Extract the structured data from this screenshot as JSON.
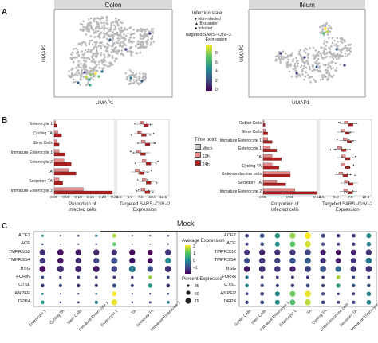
{
  "panels": {
    "A": {
      "letter": "A"
    },
    "B": {
      "letter": "B"
    },
    "C": {
      "letter": "C"
    }
  },
  "umap": {
    "colon_title": "Colon",
    "ileum_title": "Ileum",
    "xlabel": "UMAP1",
    "ylabel": "UMAP2",
    "legend": {
      "infection_title": "Infection state",
      "infection_items": [
        "Non-infected",
        "Bystander",
        "Infected"
      ],
      "color_title": "Targeted SARS−CoV−2\nExpression",
      "color_title_lines": [
        "Targeted SARS−CoV−2",
        "Expression"
      ],
      "ticks": [
        "8",
        "6",
        "4",
        "2",
        "0"
      ]
    }
  },
  "bars_colon": {
    "categories": [
      "Enterocyte 1",
      "Cycling TA",
      "Stem Cells",
      "Immature Enterocyte 1",
      "Enterocyte 2",
      "TA",
      "Secretory TA",
      "Immature Enterocyte 2"
    ],
    "xlabel_lines": [
      "Proportion of",
      "infected cells"
    ],
    "ticks": [
      "0.00",
      "0.05",
      "0.10",
      "0.15",
      "0.20",
      "0.25"
    ],
    "box_xlabel_lines": [
      "Targeted SARS−CoV−2",
      "Expression"
    ],
    "box_ticks": [
      "2.5",
      "5.0",
      "7.5",
      "10.0",
      "12.5"
    ]
  },
  "bars_ileum": {
    "categories": [
      "Goblet Cells",
      "Stem Cells",
      "Immature Enterocyte 1",
      "Enterocyte 1",
      "TA",
      "Cycling TA",
      "Enteroendocrine cells",
      "Secretory TA",
      "Immature Enterocyte 2"
    ],
    "xlabel_lines": [
      "Proportion of",
      "infected cells"
    ],
    "ticks": [
      "0.00",
      "0.05",
      "0.10"
    ],
    "box_xlabel_lines": [
      "Targeted SARS−CoV−2",
      "Expression"
    ],
    "box_ticks": [
      "2.5",
      "5.0",
      "7.5",
      "10.0"
    ]
  },
  "timepoint_legend": {
    "title": "Time point",
    "items": [
      "Mock",
      "12h",
      "24h"
    ],
    "colors": [
      "#c8c8c8",
      "#e88a8a",
      "#b01c1c"
    ]
  },
  "dot": {
    "title": "Mock",
    "genes": [
      "ACE2",
      "ACE",
      "TMPRSS2",
      "TMPRSS4",
      "BSG",
      "FURIN",
      "CTSL",
      "ANPEP",
      "DPP4"
    ],
    "colon_cells": [
      "Enterocyte 1",
      "Cycling TA",
      "Stem Cells",
      "Immature Enterocyte 1",
      "Enterocyte 2",
      "TA",
      "Secretory TA",
      "Immature Enterocyte 2"
    ],
    "ileum_cells": [
      "Goblet Cells",
      "Stem Cells",
      "Immature Enterocyte 1",
      "Enterocyte 1",
      "TA",
      "Cycling TA",
      "Enteroendocrine cells",
      "Secretory TA",
      "Immature Enterocyte 2"
    ],
    "avg_title_lines": [
      "Average Expression"
    ],
    "avg_ticks": [
      "2",
      "1",
      "0",
      "−1"
    ],
    "pct_title": "Percent Expressed",
    "pct_items": [
      "25",
      "50",
      "75"
    ]
  },
  "chart_data": [
    {
      "type": "scatter",
      "title": "Colon",
      "xlabel": "UMAP1",
      "ylabel": "UMAP2",
      "note": "UMAP embedding of colon cells colored by targeted SARS-CoV-2 expression"
    },
    {
      "type": "scatter",
      "title": "Ileum",
      "xlabel": "UMAP1",
      "ylabel": "UMAP2"
    },
    {
      "type": "bar",
      "categories": [
        "Enterocyte 1",
        "Cycling TA",
        "Stem Cells",
        "Immature Enterocyte 1",
        "Enterocyte 2",
        "TA",
        "Secretory TA",
        "Immature Enterocyte 2"
      ],
      "series": [
        {
          "name": "12h",
          "values": [
            0.005,
            0.015,
            0.01,
            0.02,
            0.04,
            0.06,
            0.02,
            0.12
          ]
        },
        {
          "name": "24h",
          "values": [
            0.012,
            0.03,
            0.02,
            0.045,
            0.07,
            0.09,
            0.035,
            0.24
          ]
        }
      ],
      "xlabel": "Proportion of infected cells",
      "xlim": [
        0,
        0.25
      ]
    },
    {
      "type": "bar",
      "categories": [
        "Goblet Cells",
        "Stem Cells",
        "Immature Enterocyte 1",
        "Enterocyte 1",
        "TA",
        "Cycling TA",
        "Enteroendocrine cells",
        "Secretory TA",
        "Immature Enterocyte 2"
      ],
      "series": [
        {
          "name": "12h",
          "values": [
            0.002,
            0.005,
            0.01,
            0.015,
            0.02,
            0.02,
            0.06,
            0.03,
            0.07
          ]
        },
        {
          "name": "24h",
          "values": [
            0.004,
            0.01,
            0.02,
            0.03,
            0.04,
            0.035,
            0.06,
            0.05,
            0.12
          ]
        }
      ],
      "xlabel": "Proportion of infected cells",
      "xlim": [
        0,
        0.12
      ]
    },
    {
      "type": "heatmap",
      "title": "Mock",
      "note": "dot plot: rows genes, cols cell types (colon)",
      "rows": [
        "ACE2",
        "ACE",
        "TMPRSS2",
        "TMPRSS4",
        "BSG",
        "FURIN",
        "CTSL",
        "ANPEP",
        "DPP4"
      ],
      "cols": [
        "Enterocyte 1",
        "Cycling TA",
        "Stem Cells",
        "Immature Enterocyte 1",
        "Enterocyte 2",
        "TA",
        "Secretory TA",
        "Immature Enterocyte 2"
      ],
      "avg": [
        [
          0.5,
          -0.8,
          -0.6,
          0.2,
          1.6,
          -0.5,
          -0.7,
          -0.3
        ],
        [
          -0.2,
          -0.6,
          -0.5,
          -0.3,
          1.2,
          -0.4,
          -0.5,
          -0.4
        ],
        [
          -0.6,
          -0.9,
          -0.8,
          -0.7,
          -0.6,
          -0.9,
          -1.0,
          -0.5
        ],
        [
          -0.5,
          -0.8,
          -0.6,
          -0.4,
          -0.3,
          -0.8,
          -0.9,
          0.4
        ],
        [
          -0.9,
          -0.6,
          -0.7,
          -0.8,
          -0.4,
          0.2,
          -0.3,
          -0.6
        ],
        [
          -0.3,
          -0.5,
          -0.4,
          -0.6,
          -0.5,
          -0.7,
          1.5,
          -0.3
        ],
        [
          -0.4,
          -0.3,
          -0.5,
          -0.6,
          -0.2,
          -0.4,
          0.6,
          -0.5
        ],
        [
          0.3,
          -0.8,
          -0.6,
          0.1,
          2.0,
          -0.7,
          -0.6,
          -0.2
        ],
        [
          0.6,
          -0.7,
          -0.5,
          0.3,
          1.9,
          -0.6,
          -0.4,
          0.2
        ]
      ],
      "pct": [
        [
          20,
          10,
          15,
          25,
          45,
          10,
          10,
          15
        ],
        [
          15,
          5,
          10,
          15,
          40,
          5,
          5,
          10
        ],
        [
          70,
          75,
          72,
          70,
          68,
          70,
          60,
          72
        ],
        [
          70,
          72,
          70,
          68,
          75,
          70,
          62,
          70
        ],
        [
          75,
          80,
          78,
          76,
          72,
          80,
          70,
          76
        ],
        [
          30,
          25,
          30,
          28,
          30,
          25,
          40,
          30
        ],
        [
          40,
          35,
          38,
          35,
          45,
          35,
          50,
          40
        ],
        [
          20,
          10,
          12,
          18,
          50,
          10,
          12,
          15
        ],
        [
          40,
          15,
          20,
          35,
          70,
          15,
          20,
          30
        ]
      ]
    },
    {
      "type": "heatmap",
      "title": "Mock",
      "note": "dot plot: rows genes, cols cell types (ileum)",
      "rows": [
        "ACE2",
        "ACE",
        "TMPRSS2",
        "TMPRSS4",
        "BSG",
        "FURIN",
        "CTSL",
        "ANPEP",
        "DPP4"
      ],
      "cols": [
        "Goblet Cells",
        "Stem Cells",
        "Immature Enterocyte 1",
        "Enterocyte 1",
        "TA",
        "Cycling TA",
        "Enteroendocrine cells",
        "Secretory TA",
        "Immature Enterocyte 2"
      ],
      "avg": [
        [
          -0.4,
          -0.2,
          0.6,
          1.5,
          2.0,
          -0.3,
          -0.6,
          -0.5,
          0.4
        ],
        [
          -0.5,
          -0.3,
          0.5,
          1.2,
          1.8,
          -0.4,
          -0.6,
          -0.5,
          0.3
        ],
        [
          -0.6,
          -0.7,
          -0.6,
          -0.5,
          -0.4,
          -0.8,
          -0.9,
          -0.7,
          -0.5
        ],
        [
          -0.3,
          -0.5,
          -0.4,
          -0.2,
          -0.1,
          -0.6,
          -0.7,
          -0.5,
          0.2
        ],
        [
          -0.8,
          -0.6,
          -0.5,
          -0.7,
          -0.4,
          -0.2,
          0.0,
          -0.5,
          -0.6
        ],
        [
          0.2,
          -0.4,
          -0.5,
          -0.6,
          -0.5,
          -0.6,
          1.6,
          -0.3,
          -0.4
        ],
        [
          0.4,
          -0.3,
          -0.4,
          -0.5,
          -0.3,
          -0.4,
          0.8,
          -0.2,
          -0.3
        ],
        [
          -0.5,
          -0.4,
          0.4,
          1.3,
          1.9,
          -0.4,
          -0.6,
          -0.5,
          0.3
        ],
        [
          -0.4,
          -0.3,
          0.5,
          1.1,
          1.7,
          -0.4,
          -0.5,
          -0.4,
          0.4
        ]
      ],
      "pct": [
        [
          40,
          50,
          60,
          70,
          75,
          45,
          35,
          40,
          55
        ],
        [
          30,
          40,
          55,
          65,
          72,
          35,
          30,
          35,
          50
        ],
        [
          65,
          70,
          68,
          70,
          72,
          66,
          60,
          64,
          70
        ],
        [
          66,
          70,
          70,
          72,
          74,
          68,
          62,
          66,
          72
        ],
        [
          72,
          74,
          72,
          70,
          75,
          74,
          70,
          72,
          74
        ],
        [
          35,
          30,
          28,
          30,
          32,
          28,
          45,
          30,
          30
        ],
        [
          40,
          38,
          35,
          38,
          40,
          36,
          50,
          38,
          38
        ],
        [
          30,
          40,
          55,
          68,
          75,
          35,
          25,
          30,
          50
        ],
        [
          35,
          42,
          55,
          65,
          72,
          38,
          30,
          35,
          52
        ]
      ]
    }
  ]
}
